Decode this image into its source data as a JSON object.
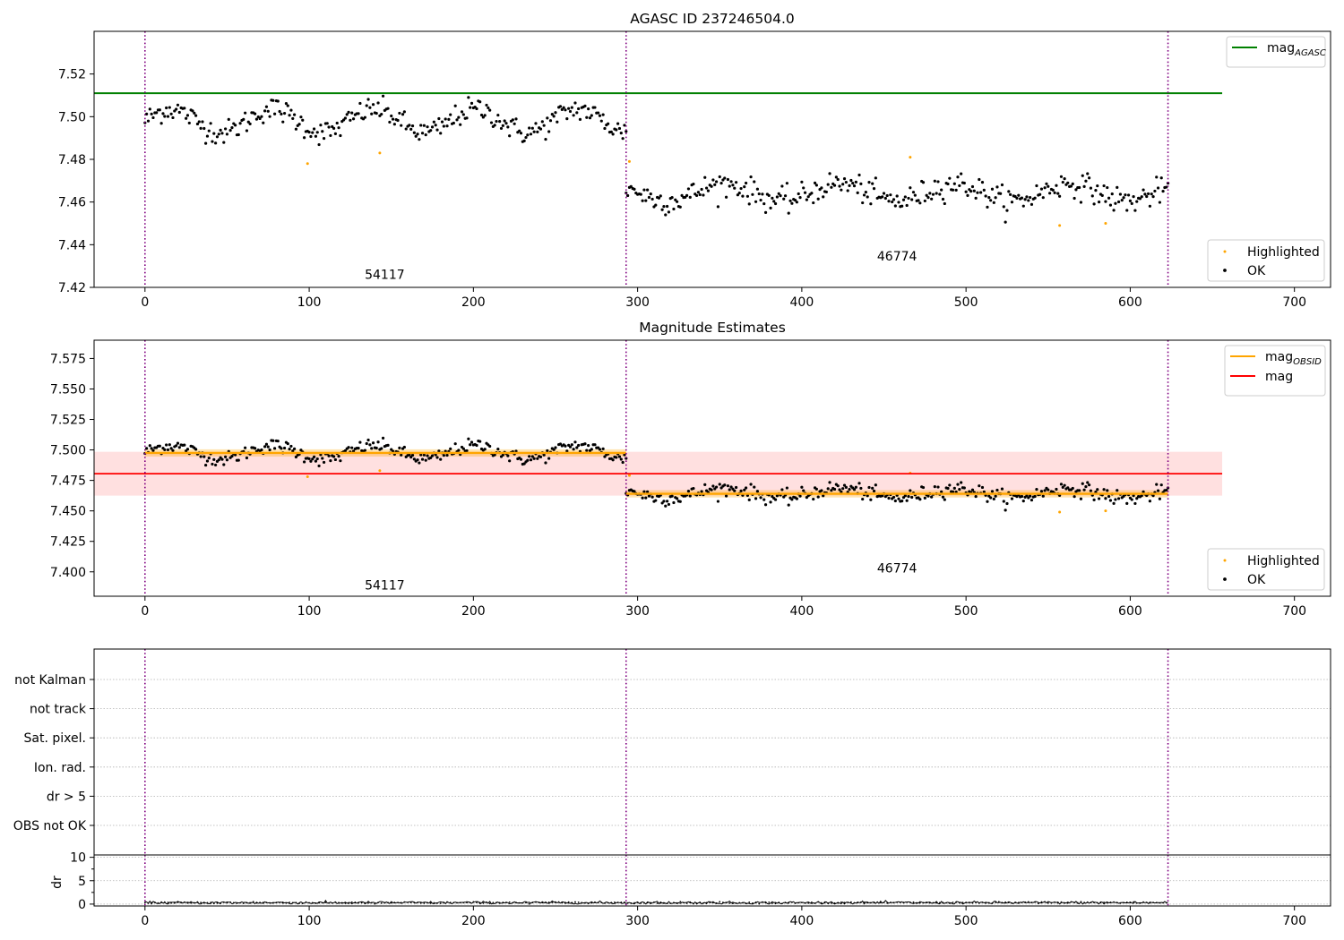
{
  "chart_data": [
    {
      "type": "scatter",
      "title": "AGASC ID 237246504.0",
      "xlim": [
        -31,
        722
      ],
      "ylim": [
        7.42,
        7.54
      ],
      "xticks": [
        0,
        100,
        200,
        300,
        400,
        500,
        600,
        700
      ],
      "yticks": [
        7.42,
        7.44,
        7.46,
        7.48,
        7.5,
        7.52
      ],
      "ytick_labels": [
        "7.42",
        "7.44",
        "7.46",
        "7.48",
        "7.50",
        "7.52"
      ],
      "obs_boundaries": [
        0,
        293,
        623
      ],
      "lines": [
        {
          "name": "mag",
          "sub": "AGASC",
          "color": "#008000",
          "y": 7.511,
          "x": [
            -31,
            656
          ]
        }
      ],
      "annotations": [
        {
          "text": "54117",
          "x": 146,
          "y": 7.424
        },
        {
          "text": "46774",
          "x": 458,
          "y": 7.4325
        }
      ],
      "segments": [
        {
          "x": [
            0,
            293
          ],
          "level": 7.498,
          "osc_amp": 0.0055,
          "osc_period": 62,
          "noise": 0.0028
        },
        {
          "x": [
            293,
            623
          ],
          "level": 7.4645,
          "osc_amp": 0.004,
          "osc_period": 70,
          "noise": 0.003
        }
      ],
      "highlighted": [
        [
          99,
          7.478
        ],
        [
          143,
          7.483
        ],
        [
          295,
          7.479
        ],
        [
          466,
          7.481
        ],
        [
          557,
          7.449
        ],
        [
          585,
          7.45
        ]
      ],
      "legend_lines": [
        {
          "label": "mag",
          "sub": "AGASC",
          "color": "#008000"
        }
      ],
      "legend_points": [
        {
          "label": "Highlighted",
          "color": "#ffa500"
        },
        {
          "label": "OK",
          "color": "#000000"
        }
      ]
    },
    {
      "type": "scatter",
      "title": "Magnitude Estimates",
      "xlim": [
        -31,
        722
      ],
      "ylim": [
        7.38,
        7.59
      ],
      "xticks": [
        0,
        100,
        200,
        300,
        400,
        500,
        600,
        700
      ],
      "yticks": [
        7.4,
        7.425,
        7.45,
        7.475,
        7.5,
        7.525,
        7.55,
        7.575
      ],
      "ytick_labels": [
        "7.400",
        "7.425",
        "7.450",
        "7.475",
        "7.500",
        "7.525",
        "7.550",
        "7.575"
      ],
      "obs_boundaries": [
        0,
        293,
        623
      ],
      "mag_line": {
        "name": "mag",
        "color": "#ff0000",
        "y": 7.4805,
        "band": [
          7.4625,
          7.4985
        ],
        "x": [
          -31,
          656
        ]
      },
      "obsid_lines": [
        {
          "x": [
            0,
            293
          ],
          "y": 7.4975,
          "band": [
            7.4945,
            7.5005
          ]
        },
        {
          "x": [
            293,
            623
          ],
          "y": 7.464,
          "band": [
            7.461,
            7.467
          ]
        }
      ],
      "annotations": [
        {
          "text": "54117",
          "x": 146,
          "y": 7.3855
        },
        {
          "text": "46774",
          "x": 458,
          "y": 7.3995
        }
      ],
      "legend_lines": [
        {
          "label": "mag",
          "sub": "OBSID",
          "color": "#ffa500"
        },
        {
          "label": "mag",
          "sub": "",
          "color": "#ff0000"
        }
      ],
      "legend_points": [
        {
          "label": "Highlighted",
          "color": "#ffa500"
        },
        {
          "label": "OK",
          "color": "#000000"
        }
      ]
    },
    {
      "type": "table",
      "categories": [
        "not Kalman",
        "not track",
        "Sat. pixel.",
        "Ion. rad.",
        "dr > 5",
        "OBS not OK"
      ],
      "obs_boundaries": [
        0,
        293,
        623
      ]
    },
    {
      "type": "line",
      "ylabel": "dr",
      "xlim": [
        -31,
        722
      ],
      "ylim": [
        -0.4,
        10.5
      ],
      "yticks": [
        0,
        5,
        10
      ],
      "ytick_labels": [
        "0",
        "5",
        "10"
      ],
      "xticks": [
        0,
        100,
        200,
        300,
        400,
        500,
        600,
        700
      ],
      "obs_boundaries": [
        0,
        293,
        623
      ],
      "series": [
        {
          "x": [
            0,
            623
          ],
          "mean": 0.3,
          "noise": 0.15
        }
      ]
    }
  ]
}
